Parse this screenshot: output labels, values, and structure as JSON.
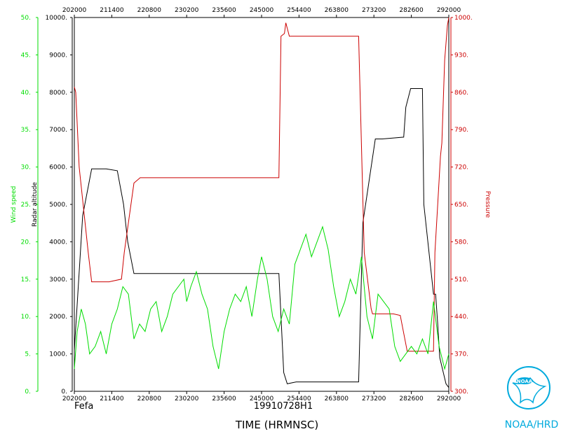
{
  "chart_data": {
    "type": "line",
    "storm_name": "Fefa",
    "flight_id": "19910728H1",
    "xlabel": "TIME (HRMNSC)",
    "x_ticks": [
      "202000",
      "211400",
      "220800",
      "230200",
      "235600",
      "245000",
      "254400",
      "263800",
      "273200",
      "282600",
      "292000"
    ],
    "xlim": [
      "202000",
      "292000"
    ],
    "axes": {
      "wind": {
        "label": "Wind speed",
        "ticks": [
          "0.",
          "5.",
          "10.",
          "15.",
          "20.",
          "25.",
          "30.",
          "35.",
          "40.",
          "45.",
          "50."
        ],
        "ylim": [
          0,
          50
        ],
        "color": "#00dd00"
      },
      "altitude": {
        "label": "Radar altitude",
        "ticks": [
          "0.",
          "1000.",
          "2000.",
          "3000.",
          "4000.",
          "5000.",
          "6000.",
          "7000.",
          "8000.",
          "9000.",
          "10000."
        ],
        "ylim": [
          0,
          10000
        ],
        "color": "#000000"
      },
      "pressure": {
        "label": "Pressure",
        "ticks": [
          "300.",
          "370.",
          "440.",
          "510.",
          "580.",
          "650.",
          "720.",
          "790.",
          "860.",
          "930.",
          "1000."
        ],
        "ylim": [
          300,
          1000
        ],
        "color": "#cc0000"
      }
    },
    "series": [
      {
        "name": "Radar altitude",
        "axis": "altitude",
        "color": "#000000",
        "x": [
          "202000",
          "203200",
          "204500",
          "210600",
          "212200",
          "213100",
          "213700",
          "214600",
          "222000",
          "240000",
          "251500",
          "252200",
          "252700",
          "254000",
          "262000",
          "271000",
          "271600",
          "273400",
          "274400",
          "281500",
          "281800",
          "282500",
          "282600",
          "283100",
          "284200",
          "284400",
          "285800",
          "290100",
          "290400",
          "290700",
          "291600",
          "292000"
        ],
        "y": [
          1100,
          4700,
          5950,
          5950,
          5900,
          5000,
          4000,
          3150,
          3150,
          3150,
          3150,
          500,
          200,
          250,
          250,
          250,
          4500,
          6750,
          6750,
          6800,
          7600,
          8100,
          8100,
          8100,
          8100,
          5000,
          2600,
          2600,
          1800,
          900,
          200,
          100
        ]
      },
      {
        "name": "Pressure",
        "axis": "pressure",
        "color": "#cc0000",
        "x": [
          "202000",
          "202200",
          "202700",
          "204000",
          "204500",
          "211000",
          "212800",
          "213200",
          "214600",
          "215500",
          "220000",
          "230000",
          "240000",
          "251500",
          "251800",
          "252300",
          "252500",
          "253000",
          "254000",
          "260000",
          "270000",
          "271000",
          "271800",
          "272800",
          "273000",
          "274000",
          "280000",
          "281000",
          "282000",
          "284000",
          "285800",
          "290000",
          "290400",
          "290800",
          "291000",
          "291400",
          "291800",
          "292000"
        ],
        "y": [
          870,
          860,
          720,
          560,
          505,
          505,
          510,
          560,
          690,
          700,
          700,
          700,
          700,
          700,
          965,
          970,
          990,
          965,
          965,
          965,
          965,
          965,
          560,
          455,
          445,
          445,
          445,
          442,
          375,
          375,
          375,
          560,
          650,
          740,
          765,
          920,
          985,
          1000
        ]
      },
      {
        "name": "Wind speed",
        "axis": "wind",
        "color": "#00dd00",
        "x": [
          "202000",
          "202400",
          "203000",
          "203600",
          "204200",
          "205000",
          "205800",
          "210600",
          "211400",
          "212200",
          "213000",
          "213800",
          "214600",
          "215400",
          "220200",
          "221000",
          "221800",
          "222600",
          "223400",
          "224200",
          "225000",
          "225800",
          "230200",
          "230800",
          "231600",
          "232400",
          "233200",
          "234000",
          "234800",
          "235600",
          "240400",
          "241200",
          "242000",
          "242800",
          "243600",
          "244400",
          "245000",
          "245800",
          "250600",
          "251400",
          "252200",
          "253000",
          "253800",
          "254600",
          "255400",
          "260200",
          "261000",
          "261800",
          "262600",
          "263400",
          "264200",
          "265000",
          "265800",
          "270600",
          "271400",
          "272200",
          "273000",
          "273800",
          "274600",
          "275400",
          "280200",
          "281000",
          "281800",
          "282600",
          "283400",
          "284200",
          "285000",
          "285800",
          "290600",
          "291400",
          "292000"
        ],
        "y": [
          3,
          8,
          11,
          9,
          5,
          6,
          8,
          5,
          9,
          11,
          14,
          13,
          7,
          9,
          8,
          11,
          12,
          8,
          10,
          13,
          14,
          15,
          12,
          14,
          16,
          13,
          11,
          6,
          3,
          8,
          11,
          13,
          12,
          14,
          10,
          15,
          18,
          15,
          10,
          8,
          11,
          9,
          17,
          19,
          21,
          18,
          20,
          22,
          19,
          14,
          10,
          12,
          15,
          13,
          18,
          10,
          7,
          13,
          12,
          11,
          6,
          4,
          5,
          6,
          5,
          7,
          5,
          12,
          6,
          3,
          5
        ]
      }
    ]
  },
  "branding": {
    "logo_text": "NOAA",
    "org_label": "NOAA/HRD"
  }
}
